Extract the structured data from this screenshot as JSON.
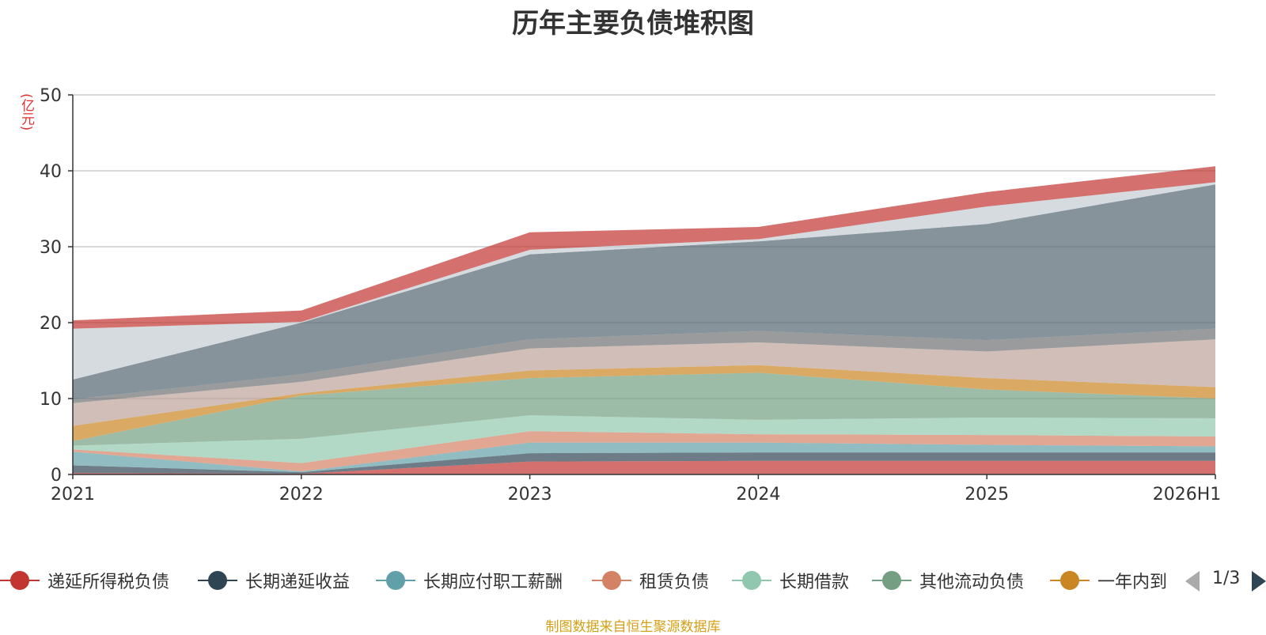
{
  "chart_data": {
    "type": "area",
    "stacked": true,
    "title": "历年主要负债堆积图",
    "ylabel": "(亿元)",
    "categories": [
      "2021",
      "2022",
      "2023",
      "2024",
      "2025",
      "2026H1"
    ],
    "ylim": [
      0,
      50
    ],
    "yticks": [
      0,
      10,
      20,
      30,
      40,
      50
    ],
    "grid": true,
    "legend_position": "bottom",
    "legend_page": "1/3",
    "series": [
      {
        "name": "递延所得税负债",
        "color": "#c23531",
        "values": [
          0.2,
          0.1,
          1.7,
          1.8,
          1.8,
          1.8
        ]
      },
      {
        "name": "长期递延收益",
        "color": "#2f4554",
        "values": [
          1.0,
          0.2,
          1.1,
          1.1,
          1.1,
          1.1
        ]
      },
      {
        "name": "长期应付职工薪酬",
        "color": "#61a0a8",
        "values": [
          1.8,
          0.1,
          1.4,
          1.3,
          1.0,
          0.8
        ]
      },
      {
        "name": "租赁负债",
        "color": "#d48265",
        "values": [
          0.3,
          1.1,
          1.5,
          1.1,
          1.3,
          1.3
        ]
      },
      {
        "name": "长期借款",
        "color": "#91c7ae",
        "values": [
          0.5,
          3.2,
          2.1,
          1.9,
          2.3,
          2.4
        ]
      },
      {
        "name": "其他流动负债",
        "color": "#749f83",
        "values": [
          0.6,
          5.7,
          4.9,
          6.2,
          3.7,
          2.6
        ]
      },
      {
        "name": "一年内到",
        "color": "#ca8622",
        "values": [
          2.0,
          0.3,
          1.0,
          1.0,
          1.5,
          1.5
        ]
      },
      {
        "values": [
          3.0,
          1.5,
          2.9,
          3.0,
          3.5,
          6.3
        ],
        "color": "#bda29a"
      },
      {
        "values": [
          0.5,
          1.0,
          1.2,
          1.5,
          1.5,
          1.4
        ],
        "color": "#6e7074"
      },
      {
        "values": [
          2.6,
          6.8,
          11.2,
          11.8,
          15.3,
          19.0
        ],
        "color": "#546570"
      },
      {
        "values": [
          6.7,
          0.1,
          0.6,
          0.3,
          2.3,
          0.3
        ],
        "color": "#c4ccd3"
      },
      {
        "values": [
          1.1,
          1.5,
          2.3,
          1.6,
          1.9,
          2.1
        ],
        "color": "#c23531"
      }
    ]
  },
  "source_note": "制图数据来自恒生聚源数据库"
}
